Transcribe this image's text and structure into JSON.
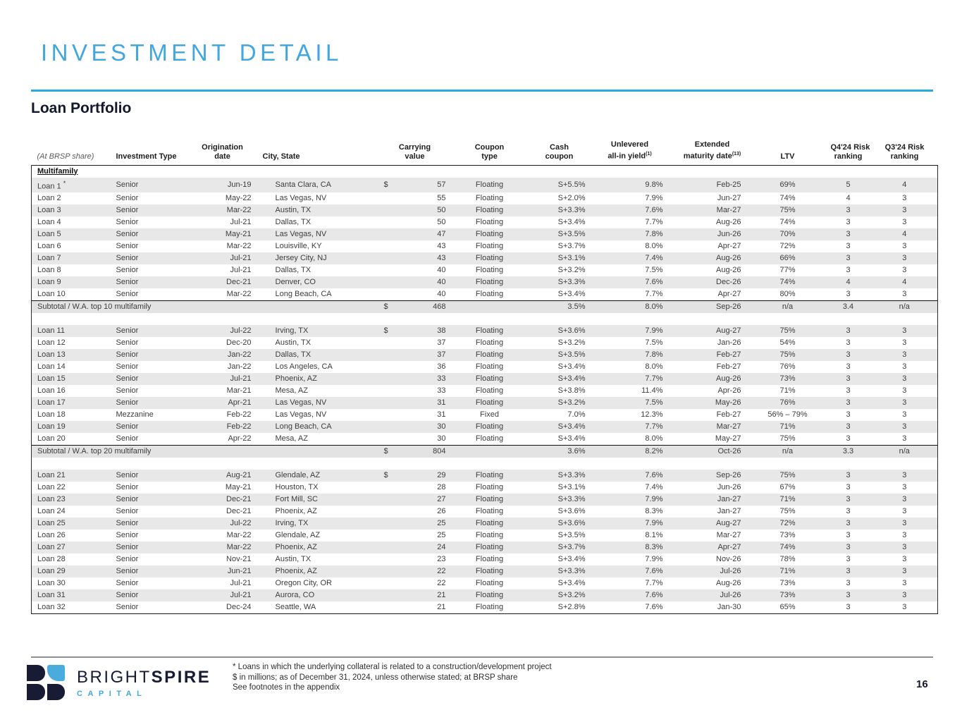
{
  "page": {
    "title": "INVESTMENT DETAIL",
    "section_title": "Loan Portfolio",
    "page_number": "16"
  },
  "colors": {
    "accent_rule_blue": "#29abe2",
    "title_blue": "#41a7de",
    "brand_navy": "#171b34",
    "row_stripe_gray": "#e8e8e8",
    "subtotal_gray": "#e3e3e3"
  },
  "table": {
    "group_label": "Multifamily",
    "headers": [
      {
        "top": "",
        "bottom": "(At BRSP share)",
        "sup": ""
      },
      {
        "top": "",
        "bottom": "Investment Type",
        "sup": ""
      },
      {
        "top": "Origination",
        "bottom": "date",
        "sup": ""
      },
      {
        "top": "",
        "bottom": "City, State",
        "sup": ""
      },
      {
        "top": "Carrying",
        "bottom": "value",
        "sup": ""
      },
      {
        "top": "Coupon",
        "bottom": "type",
        "sup": ""
      },
      {
        "top": "Cash",
        "bottom": "coupon",
        "sup": ""
      },
      {
        "top": "Unlevered",
        "bottom": "all-in yield",
        "sup": "(1)"
      },
      {
        "top": "Extended",
        "bottom": "maturity date",
        "sup": "(13)"
      },
      {
        "top": "",
        "bottom": "LTV",
        "sup": ""
      },
      {
        "top": "Q4'24 Risk",
        "bottom": "ranking",
        "sup": ""
      },
      {
        "top": "Q3'24 Risk",
        "bottom": "ranking",
        "sup": ""
      }
    ],
    "sections": [
      {
        "rows": [
          [
            "Loan 1 *",
            "Senior",
            "Jun-19",
            "Santa Clara, CA",
            "$",
            "57",
            "Floating",
            "S+5.5%",
            "9.8%",
            "Feb-25",
            "69%",
            "5",
            "4"
          ],
          [
            "Loan 2",
            "Senior",
            "May-22",
            "Las Vegas, NV",
            "",
            "55",
            "Floating",
            "S+2.0%",
            "7.9%",
            "Jun-27",
            "74%",
            "4",
            "3"
          ],
          [
            "Loan 3",
            "Senior",
            "Mar-22",
            "Austin, TX",
            "",
            "50",
            "Floating",
            "S+3.3%",
            "7.6%",
            "Mar-27",
            "75%",
            "3",
            "3"
          ],
          [
            "Loan 4",
            "Senior",
            "Jul-21",
            "Dallas, TX",
            "",
            "50",
            "Floating",
            "S+3.4%",
            "7.7%",
            "Aug-26",
            "74%",
            "3",
            "3"
          ],
          [
            "Loan 5",
            "Senior",
            "May-21",
            "Las Vegas, NV",
            "",
            "47",
            "Floating",
            "S+3.5%",
            "7.8%",
            "Jun-26",
            "70%",
            "3",
            "4"
          ],
          [
            "Loan 6",
            "Senior",
            "Mar-22",
            "Louisville, KY",
            "",
            "43",
            "Floating",
            "S+3.7%",
            "8.0%",
            "Apr-27",
            "72%",
            "3",
            "3"
          ],
          [
            "Loan 7",
            "Senior",
            "Jul-21",
            "Jersey City, NJ",
            "",
            "43",
            "Floating",
            "S+3.1%",
            "7.4%",
            "Aug-26",
            "66%",
            "3",
            "3"
          ],
          [
            "Loan 8",
            "Senior",
            "Jul-21",
            "Dallas, TX",
            "",
            "40",
            "Floating",
            "S+3.2%",
            "7.5%",
            "Aug-26",
            "77%",
            "3",
            "3"
          ],
          [
            "Loan 9",
            "Senior",
            "Dec-21",
            "Denver, CO",
            "",
            "40",
            "Floating",
            "S+3.3%",
            "7.6%",
            "Dec-26",
            "74%",
            "4",
            "4"
          ],
          [
            "Loan 10",
            "Senior",
            "Mar-22",
            "Long Beach, CA",
            "",
            "40",
            "Floating",
            "S+3.4%",
            "7.7%",
            "Apr-27",
            "80%",
            "3",
            "3"
          ]
        ],
        "subtotal": {
          "label": "Subtotal / W.A. top 10 multifamily",
          "dollar": "$",
          "value": "468",
          "coupon_type": "",
          "cash_coupon": "3.5%",
          "yield": "8.0%",
          "maturity": "Sep-26",
          "ltv": "n/a",
          "q4": "3.4",
          "q3": "n/a"
        }
      },
      {
        "rows": [
          [
            "Loan 11",
            "Senior",
            "Jul-22",
            "Irving, TX",
            "$",
            "38",
            "Floating",
            "S+3.6%",
            "7.9%",
            "Aug-27",
            "75%",
            "3",
            "3"
          ],
          [
            "Loan 12",
            "Senior",
            "Dec-20",
            "Austin, TX",
            "",
            "37",
            "Floating",
            "S+3.2%",
            "7.5%",
            "Jan-26",
            "54%",
            "3",
            "3"
          ],
          [
            "Loan 13",
            "Senior",
            "Jan-22",
            "Dallas, TX",
            "",
            "37",
            "Floating",
            "S+3.5%",
            "7.8%",
            "Feb-27",
            "75%",
            "3",
            "3"
          ],
          [
            "Loan 14",
            "Senior",
            "Jan-22",
            "Los Angeles, CA",
            "",
            "36",
            "Floating",
            "S+3.4%",
            "8.0%",
            "Feb-27",
            "76%",
            "3",
            "3"
          ],
          [
            "Loan 15",
            "Senior",
            "Jul-21",
            "Phoenix, AZ",
            "",
            "33",
            "Floating",
            "S+3.4%",
            "7.7%",
            "Aug-26",
            "73%",
            "3",
            "3"
          ],
          [
            "Loan 16",
            "Senior",
            "Mar-21",
            "Mesa, AZ",
            "",
            "33",
            "Floating",
            "S+3.8%",
            "11.4%",
            "Apr-26",
            "71%",
            "3",
            "3"
          ],
          [
            "Loan 17",
            "Senior",
            "Apr-21",
            "Las Vegas, NV",
            "",
            "31",
            "Floating",
            "S+3.2%",
            "7.5%",
            "May-26",
            "76%",
            "3",
            "3"
          ],
          [
            "Loan 18",
            "Mezzanine",
            "Feb-22",
            "Las Vegas, NV",
            "",
            "31",
            "Fixed",
            "7.0%",
            "12.3%",
            "Feb-27",
            "56% – 79%",
            "3",
            "3"
          ],
          [
            "Loan 19",
            "Senior",
            "Feb-22",
            "Long Beach, CA",
            "",
            "30",
            "Floating",
            "S+3.4%",
            "7.7%",
            "Mar-27",
            "71%",
            "3",
            "3"
          ],
          [
            "Loan 20",
            "Senior",
            "Apr-22",
            "Mesa, AZ",
            "",
            "30",
            "Floating",
            "S+3.4%",
            "8.0%",
            "May-27",
            "75%",
            "3",
            "3"
          ]
        ],
        "subtotal": {
          "label": "Subtotal / W.A. top 20 multifamily",
          "dollar": "$",
          "value": "804",
          "coupon_type": "",
          "cash_coupon": "3.6%",
          "yield": "8.2%",
          "maturity": "Oct-26",
          "ltv": "n/a",
          "q4": "3.3",
          "q3": "n/a"
        }
      },
      {
        "rows": [
          [
            "Loan 21",
            "Senior",
            "Aug-21",
            "Glendale, AZ",
            "$",
            "29",
            "Floating",
            "S+3.3%",
            "7.6%",
            "Sep-26",
            "75%",
            "3",
            "3"
          ],
          [
            "Loan 22",
            "Senior",
            "May-21",
            "Houston, TX",
            "",
            "28",
            "Floating",
            "S+3.1%",
            "7.4%",
            "Jun-26",
            "67%",
            "3",
            "3"
          ],
          [
            "Loan 23",
            "Senior",
            "Dec-21",
            "Fort Mill, SC",
            "",
            "27",
            "Floating",
            "S+3.3%",
            "7.9%",
            "Jan-27",
            "71%",
            "3",
            "3"
          ],
          [
            "Loan 24",
            "Senior",
            "Dec-21",
            "Phoenix, AZ",
            "",
            "26",
            "Floating",
            "S+3.6%",
            "8.3%",
            "Jan-27",
            "75%",
            "3",
            "3"
          ],
          [
            "Loan 25",
            "Senior",
            "Jul-22",
            "Irving, TX",
            "",
            "25",
            "Floating",
            "S+3.6%",
            "7.9%",
            "Aug-27",
            "72%",
            "3",
            "3"
          ],
          [
            "Loan 26",
            "Senior",
            "Mar-22",
            "Glendale, AZ",
            "",
            "25",
            "Floating",
            "S+3.5%",
            "8.1%",
            "Mar-27",
            "73%",
            "3",
            "3"
          ],
          [
            "Loan 27",
            "Senior",
            "Mar-22",
            "Phoenix, AZ",
            "",
            "24",
            "Floating",
            "S+3.7%",
            "8.3%",
            "Apr-27",
            "74%",
            "3",
            "3"
          ],
          [
            "Loan 28",
            "Senior",
            "Nov-21",
            "Austin, TX",
            "",
            "23",
            "Floating",
            "S+3.4%",
            "7.9%",
            "Nov-26",
            "78%",
            "3",
            "3"
          ],
          [
            "Loan 29",
            "Senior",
            "Jun-21",
            "Phoenix, AZ",
            "",
            "22",
            "Floating",
            "S+3.3%",
            "7.6%",
            "Jul-26",
            "71%",
            "3",
            "3"
          ],
          [
            "Loan 30",
            "Senior",
            "Jul-21",
            "Oregon City, OR",
            "",
            "22",
            "Floating",
            "S+3.4%",
            "7.7%",
            "Aug-26",
            "73%",
            "3",
            "3"
          ],
          [
            "Loan 31",
            "Senior",
            "Jul-21",
            "Aurora, CO",
            "",
            "21",
            "Floating",
            "S+3.2%",
            "7.6%",
            "Jul-26",
            "73%",
            "3",
            "3"
          ],
          [
            "Loan 32",
            "Senior",
            "Dec-24",
            "Seattle, WA",
            "",
            "21",
            "Floating",
            "S+2.8%",
            "7.6%",
            "Jan-30",
            "65%",
            "3",
            "3"
          ]
        ],
        "subtotal": null
      }
    ]
  },
  "footer": {
    "logo": {
      "brand_regular": "BRIGHT",
      "brand_bold": "SPIRE",
      "brand_sub": "CAPITAL"
    },
    "footnotes": [
      "* Loans in which the underlying collateral is related to a construction/development project",
      "$ in millions; as of December 31, 2024, unless otherwise stated; at BRSP share",
      "See footnotes in the appendix"
    ]
  }
}
